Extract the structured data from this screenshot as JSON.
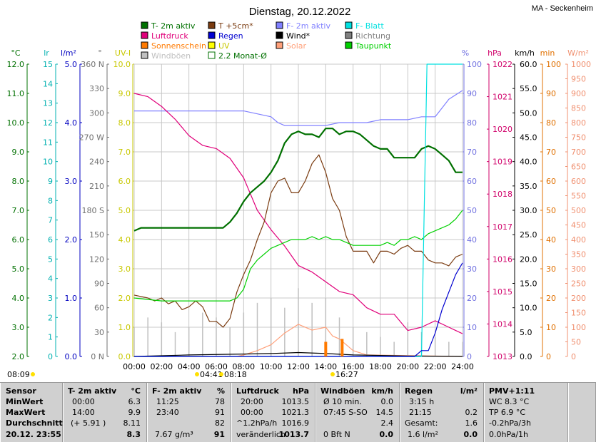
{
  "header": {
    "title": "Dienstag, 20.12.2022",
    "station": "MA - Seckenheim"
  },
  "legend": [
    {
      "label": "T- 2m aktiv",
      "color": "#007000",
      "style": "fill"
    },
    {
      "label": "T +5cm*",
      "color": "#7a3b10",
      "style": "fill"
    },
    {
      "label": "F- 2m aktiv",
      "color": "#8080ff",
      "style": "fill"
    },
    {
      "label": "F- Blatt",
      "color": "#00e0e0",
      "style": "fill"
    },
    {
      "label": "Luftdruck",
      "color": "#e0007a",
      "style": "fill"
    },
    {
      "label": "Regen",
      "color": "#0000d0",
      "style": "fill"
    },
    {
      "label": "Wind*",
      "color": "#000000",
      "style": "fill"
    },
    {
      "label": "Richtung",
      "color": "#808080",
      "style": "fill"
    },
    {
      "label": "Sonnenschein",
      "color": "#ff7a00",
      "style": "fill"
    },
    {
      "label": "UV",
      "color": "#ffff00",
      "style": "fill"
    },
    {
      "label": "Solar",
      "color": "#ffa07a",
      "style": "fill"
    },
    {
      "label": "Taupunkt",
      "color": "#00d000",
      "style": "fill"
    },
    {
      "label": "Windböen",
      "color": "#c0c0c0",
      "style": "fill"
    },
    {
      "label": "2.2 Monat-Ø",
      "color": "#007000",
      "style": "outline"
    }
  ],
  "colors": {
    "temp": "#007000",
    "soil": "#7a3b10",
    "humidity": "#8080ff",
    "leaf": "#00e0e0",
    "pressure": "#e0007a",
    "rain": "#0000d0",
    "wind": "#000000",
    "direction": "#808080",
    "sun": "#ff7a00",
    "uv": "#e8e800",
    "solar": "#ffa07a",
    "dewpoint": "#00d000",
    "gusts": "#c0c0c0",
    "grid": "#a0a0a0"
  },
  "chart_data": {
    "type": "line",
    "x_labels": [
      "00:00",
      "02:00",
      "04:00",
      "06:00",
      "08:00",
      "10:00",
      "12:00",
      "14:00",
      "16:00",
      "18:00",
      "20:00",
      "22:00",
      "24:00"
    ],
    "xlim": [
      0,
      24
    ],
    "axes": [
      {
        "unit": "°C",
        "min": 2,
        "max": 12,
        "ticks": [
          "12.0",
          "11.0",
          "10.0",
          "9.0",
          "8.0",
          "7.0",
          "6.0",
          "5.0",
          "4.0",
          "3.0",
          "2.0"
        ],
        "color": "#007000",
        "side": "left"
      },
      {
        "unit": "lr",
        "min": 0,
        "max": 15,
        "ticks": [
          "15",
          "14",
          "13",
          "12",
          "11",
          "10",
          "9",
          "8",
          "7",
          "6",
          "5",
          "4",
          "3",
          "2",
          "1",
          "0"
        ],
        "color": "#00b0b0",
        "side": "left"
      },
      {
        "unit": "l/m²",
        "min": 0,
        "max": 5,
        "ticks": [
          "5.0",
          "4.0",
          "3.0",
          "2.0",
          "1.0",
          "0.0"
        ],
        "color": "#0000c0",
        "side": "left"
      },
      {
        "unit": "°",
        "min": 0,
        "max": 360,
        "ticks": [
          "360 N",
          "330",
          "300",
          "270 W",
          "240",
          "210",
          "180 S",
          "150",
          "120",
          "90",
          "60",
          "30",
          "0 N"
        ],
        "color": "#707070",
        "side": "left"
      },
      {
        "unit": "UV-I",
        "min": 0,
        "max": 10,
        "ticks": [
          "10.0",
          "9.0",
          "8.0",
          "7.0",
          "6.0",
          "5.0",
          "4.0",
          "3.0",
          "2.0",
          "1.0",
          "0.0"
        ],
        "color": "#c8c800",
        "side": "left"
      },
      {
        "unit": "%",
        "min": 0,
        "max": 100,
        "ticks": [
          "100",
          "90",
          "80",
          "70",
          "60",
          "50",
          "40",
          "30",
          "20",
          "10",
          "0"
        ],
        "color": "#7070e0",
        "side": "right"
      },
      {
        "unit": "hPa",
        "min": 1013,
        "max": 1022,
        "ticks": [
          "1022",
          "1021",
          "1020",
          "1019",
          "1018",
          "1017",
          "1016",
          "1015",
          "1014",
          "1013"
        ],
        "color": "#d0006a",
        "side": "right"
      },
      {
        "unit": "km/h",
        "min": 0,
        "max": 60,
        "ticks": [
          "60.0",
          "55.0",
          "50.0",
          "45.0",
          "40.0",
          "35.0",
          "30.0",
          "25.0",
          "20.0",
          "15.0",
          "10.0",
          "5.0",
          "0.0"
        ],
        "color": "#000000",
        "side": "right"
      },
      {
        "unit": "min",
        "min": 0,
        "max": 100,
        "ticks": [
          "100",
          "90",
          "80",
          "70",
          "60",
          "50",
          "40",
          "30",
          "20",
          "10",
          "0"
        ],
        "color": "#e07000",
        "side": "right"
      },
      {
        "unit": "W/m²",
        "min": 0,
        "max": 1000,
        "ticks": [
          "1000",
          "950",
          "900",
          "850",
          "800",
          "750",
          "700",
          "650",
          "600",
          "550",
          "500",
          "450",
          "400",
          "350",
          "300",
          "250",
          "200",
          "150",
          "100",
          "50",
          "0"
        ],
        "color": "#f09070",
        "side": "right"
      }
    ],
    "series": [
      {
        "name": "T- 2m aktiv",
        "unit": "°C",
        "x": [
          0,
          0.5,
          6.5,
          7,
          7.5,
          8,
          8.5,
          9,
          9.5,
          10,
          10.5,
          11,
          11.5,
          12,
          12.5,
          13,
          13.5,
          14,
          14.5,
          15,
          15.5,
          16,
          16.5,
          17,
          17.5,
          18,
          18.5,
          19,
          19.5,
          20,
          20.5,
          21,
          21.5,
          22,
          22.5,
          23,
          23.5,
          24
        ],
        "y": [
          6.3,
          6.4,
          6.4,
          6.6,
          6.9,
          7.3,
          7.6,
          7.8,
          8.0,
          8.3,
          8.7,
          9.3,
          9.6,
          9.7,
          9.6,
          9.6,
          9.5,
          9.8,
          9.8,
          9.6,
          9.7,
          9.7,
          9.6,
          9.4,
          9.2,
          9.1,
          9.1,
          8.8,
          8.8,
          8.8,
          8.8,
          9.1,
          9.2,
          9.1,
          8.9,
          8.7,
          8.3,
          8.3
        ]
      },
      {
        "name": "T +5cm*",
        "unit": "°C",
        "x": [
          0,
          1,
          1.5,
          2,
          2.5,
          3,
          3.5,
          4,
          4.5,
          5,
          5.5,
          6,
          6.5,
          7,
          7.5,
          8,
          8.5,
          9,
          9.5,
          10,
          10.5,
          11,
          11.5,
          12,
          12.5,
          13,
          13.5,
          14,
          14.5,
          15,
          15.5,
          16,
          16.5,
          17,
          17.5,
          18,
          18.5,
          19,
          19.5,
          20,
          20.5,
          21,
          21.5,
          22,
          22.5,
          23,
          23.5,
          24
        ],
        "y": [
          4.1,
          4.0,
          3.9,
          4.0,
          3.8,
          3.9,
          3.6,
          3.7,
          3.9,
          3.7,
          3.2,
          3.2,
          3.0,
          3.3,
          4.2,
          4.8,
          5.3,
          6.0,
          6.6,
          7.6,
          8.0,
          8.1,
          7.6,
          7.6,
          8.0,
          8.6,
          8.9,
          8.3,
          7.4,
          7.0,
          6.1,
          5.6,
          5.6,
          5.6,
          5.2,
          5.6,
          5.6,
          5.5,
          5.7,
          5.8,
          5.6,
          5.6,
          5.3,
          5.2,
          5.2,
          5.1,
          5.4,
          5.5
        ]
      },
      {
        "name": "Taupunkt",
        "unit": "°C",
        "x": [
          0,
          2,
          4,
          6,
          7,
          7.5,
          8,
          8.5,
          9,
          9.5,
          10,
          10.5,
          11,
          11.5,
          12,
          12.5,
          13,
          13.5,
          14,
          14.5,
          15,
          15.5,
          16,
          17,
          18,
          18.5,
          19,
          19.5,
          20,
          20.5,
          21,
          21.5,
          22,
          22.5,
          23,
          23.5,
          24
        ],
        "y": [
          4.0,
          3.9,
          3.9,
          3.9,
          3.9,
          4.0,
          4.3,
          5.0,
          5.3,
          5.5,
          5.7,
          5.8,
          5.9,
          6.0,
          6.0,
          6.0,
          6.1,
          6.0,
          6.1,
          6.0,
          6.0,
          5.9,
          5.8,
          5.8,
          5.8,
          5.9,
          5.8,
          6.0,
          6.0,
          6.1,
          6.0,
          6.2,
          6.3,
          6.4,
          6.5,
          6.7,
          7.0
        ]
      },
      {
        "name": "F- 2m aktiv",
        "unit": "%",
        "x": [
          0,
          1,
          2,
          3,
          4,
          5,
          6,
          7,
          7.5,
          8,
          9,
          10,
          10.5,
          11,
          12,
          13,
          14,
          15,
          16,
          17,
          18,
          19,
          20,
          21,
          22,
          22.5,
          23,
          24
        ],
        "y": [
          84,
          84,
          84,
          84,
          84,
          84,
          84,
          84,
          84,
          84,
          83,
          82,
          80,
          79,
          79,
          79,
          79,
          80,
          80,
          80,
          81,
          81,
          81,
          82,
          82,
          85,
          88,
          91
        ]
      },
      {
        "name": "F- Blatt",
        "unit": "%",
        "x": [
          0,
          21,
          21.2,
          21.4,
          24
        ],
        "y": [
          0,
          0,
          50,
          100,
          100
        ]
      },
      {
        "name": "Luftdruck",
        "unit": "hPa",
        "x": [
          0,
          1,
          2,
          3,
          4,
          5,
          6,
          7,
          8,
          9,
          10,
          11,
          12,
          13,
          14,
          15,
          16,
          17,
          18,
          19,
          20,
          21,
          22,
          23,
          24
        ],
        "y": [
          1021.1,
          1021.0,
          1020.7,
          1020.3,
          1019.8,
          1019.5,
          1019.4,
          1019.1,
          1018.5,
          1017.5,
          1016.9,
          1016.4,
          1015.8,
          1015.6,
          1015.3,
          1015.0,
          1014.9,
          1014.5,
          1014.3,
          1014.3,
          1013.8,
          1013.9,
          1014.1,
          1013.9,
          1013.7
        ]
      },
      {
        "name": "Regen",
        "unit": "l/m²",
        "x": [
          0,
          20.5,
          21,
          21.5,
          22,
          22.5,
          23,
          23.5,
          24
        ],
        "y": [
          0,
          0,
          0.1,
          0.1,
          0.4,
          0.8,
          1.1,
          1.4,
          1.6
        ]
      },
      {
        "name": "Windböen",
        "unit": "km/h",
        "x": [
          0,
          1,
          2,
          3,
          4,
          5,
          6,
          7,
          8,
          9,
          10,
          11,
          12,
          13,
          14,
          15,
          16,
          17,
          18,
          19,
          20,
          21,
          22,
          23,
          24
        ],
        "y": [
          6,
          8,
          7,
          5,
          6,
          9,
          8,
          6,
          9,
          11,
          12,
          10,
          14,
          11,
          12,
          8,
          6,
          5,
          4,
          3,
          7,
          5,
          4,
          3,
          3
        ]
      },
      {
        "name": "Wind*",
        "unit": "km/h",
        "x": [
          0,
          4,
          8,
          10,
          12,
          14,
          16,
          20,
          24
        ],
        "y": [
          0,
          0.3,
          0.5,
          0.6,
          0.8,
          0.6,
          0.3,
          0.1,
          0
        ]
      },
      {
        "name": "Solar",
        "unit": "W/m²",
        "x": [
          0,
          7.5,
          8,
          9,
          10,
          11,
          12,
          13,
          14,
          14.5,
          15,
          15.5,
          16,
          17,
          24
        ],
        "y": [
          0,
          0,
          5,
          20,
          40,
          80,
          110,
          90,
          100,
          70,
          60,
          40,
          20,
          5,
          0
        ]
      },
      {
        "name": "Sonnenschein",
        "unit": "min",
        "x": [
          14.0,
          15.2
        ],
        "y": [
          5,
          6
        ]
      }
    ],
    "sun_markers": [
      "08:09",
      "04:41",
      "08:18",
      "16:27"
    ],
    "grid": true
  },
  "table": {
    "sensor": {
      "header": "Sensor",
      "rows": [
        "MinWert",
        "MaxWert",
        "Durchschnitt",
        "20.12. 23:55"
      ]
    },
    "temp": {
      "header": "T- 2m aktiv",
      "unit": "°C",
      "rows": [
        [
          "00:00",
          "6.3"
        ],
        [
          "14:00",
          "9.9"
        ],
        [
          "(+ 5.91 )",
          "8.11"
        ],
        [
          "",
          "8.3"
        ]
      ]
    },
    "hum": {
      "header": "F- 2m aktiv",
      "unit": "%",
      "rows": [
        [
          "11:25",
          "78"
        ],
        [
          "23:40",
          "91"
        ],
        [
          "",
          "82"
        ],
        [
          "7.67 g/m³",
          "91"
        ]
      ]
    },
    "press": {
      "header": "Luftdruck",
      "unit": "hPa",
      "rows": [
        [
          "20:00",
          "1013.5"
        ],
        [
          "00:00",
          "1021.3"
        ],
        [
          "^1.2hPa/h",
          "1016.9"
        ],
        [
          "veränderlich",
          "1013.7"
        ]
      ]
    },
    "wind": {
      "header": "Windböen",
      "unit": "km/h",
      "rows": [
        [
          "Ø 10 min.",
          "0.0"
        ],
        [
          "07:45   S-SO",
          "14.5"
        ],
        [
          "",
          "2.4"
        ],
        [
          "0 Bft N",
          "0.0"
        ]
      ]
    },
    "rain": {
      "header": "Regen",
      "unit": "l/m²",
      "rows": [
        [
          "3:15 h",
          ""
        ],
        [
          "21:15",
          "0.2"
        ],
        [
          "Gesamt:",
          "1.6"
        ],
        [
          "1.6 l/m²",
          "0.0"
        ]
      ]
    },
    "pmv": {
      "header": "PMV+1:11",
      "rows": [
        "WC 8.3 °C",
        "TP 6.9 °C",
        "-0.2hPa/3h",
        "0.0hPa/1h"
      ]
    }
  }
}
